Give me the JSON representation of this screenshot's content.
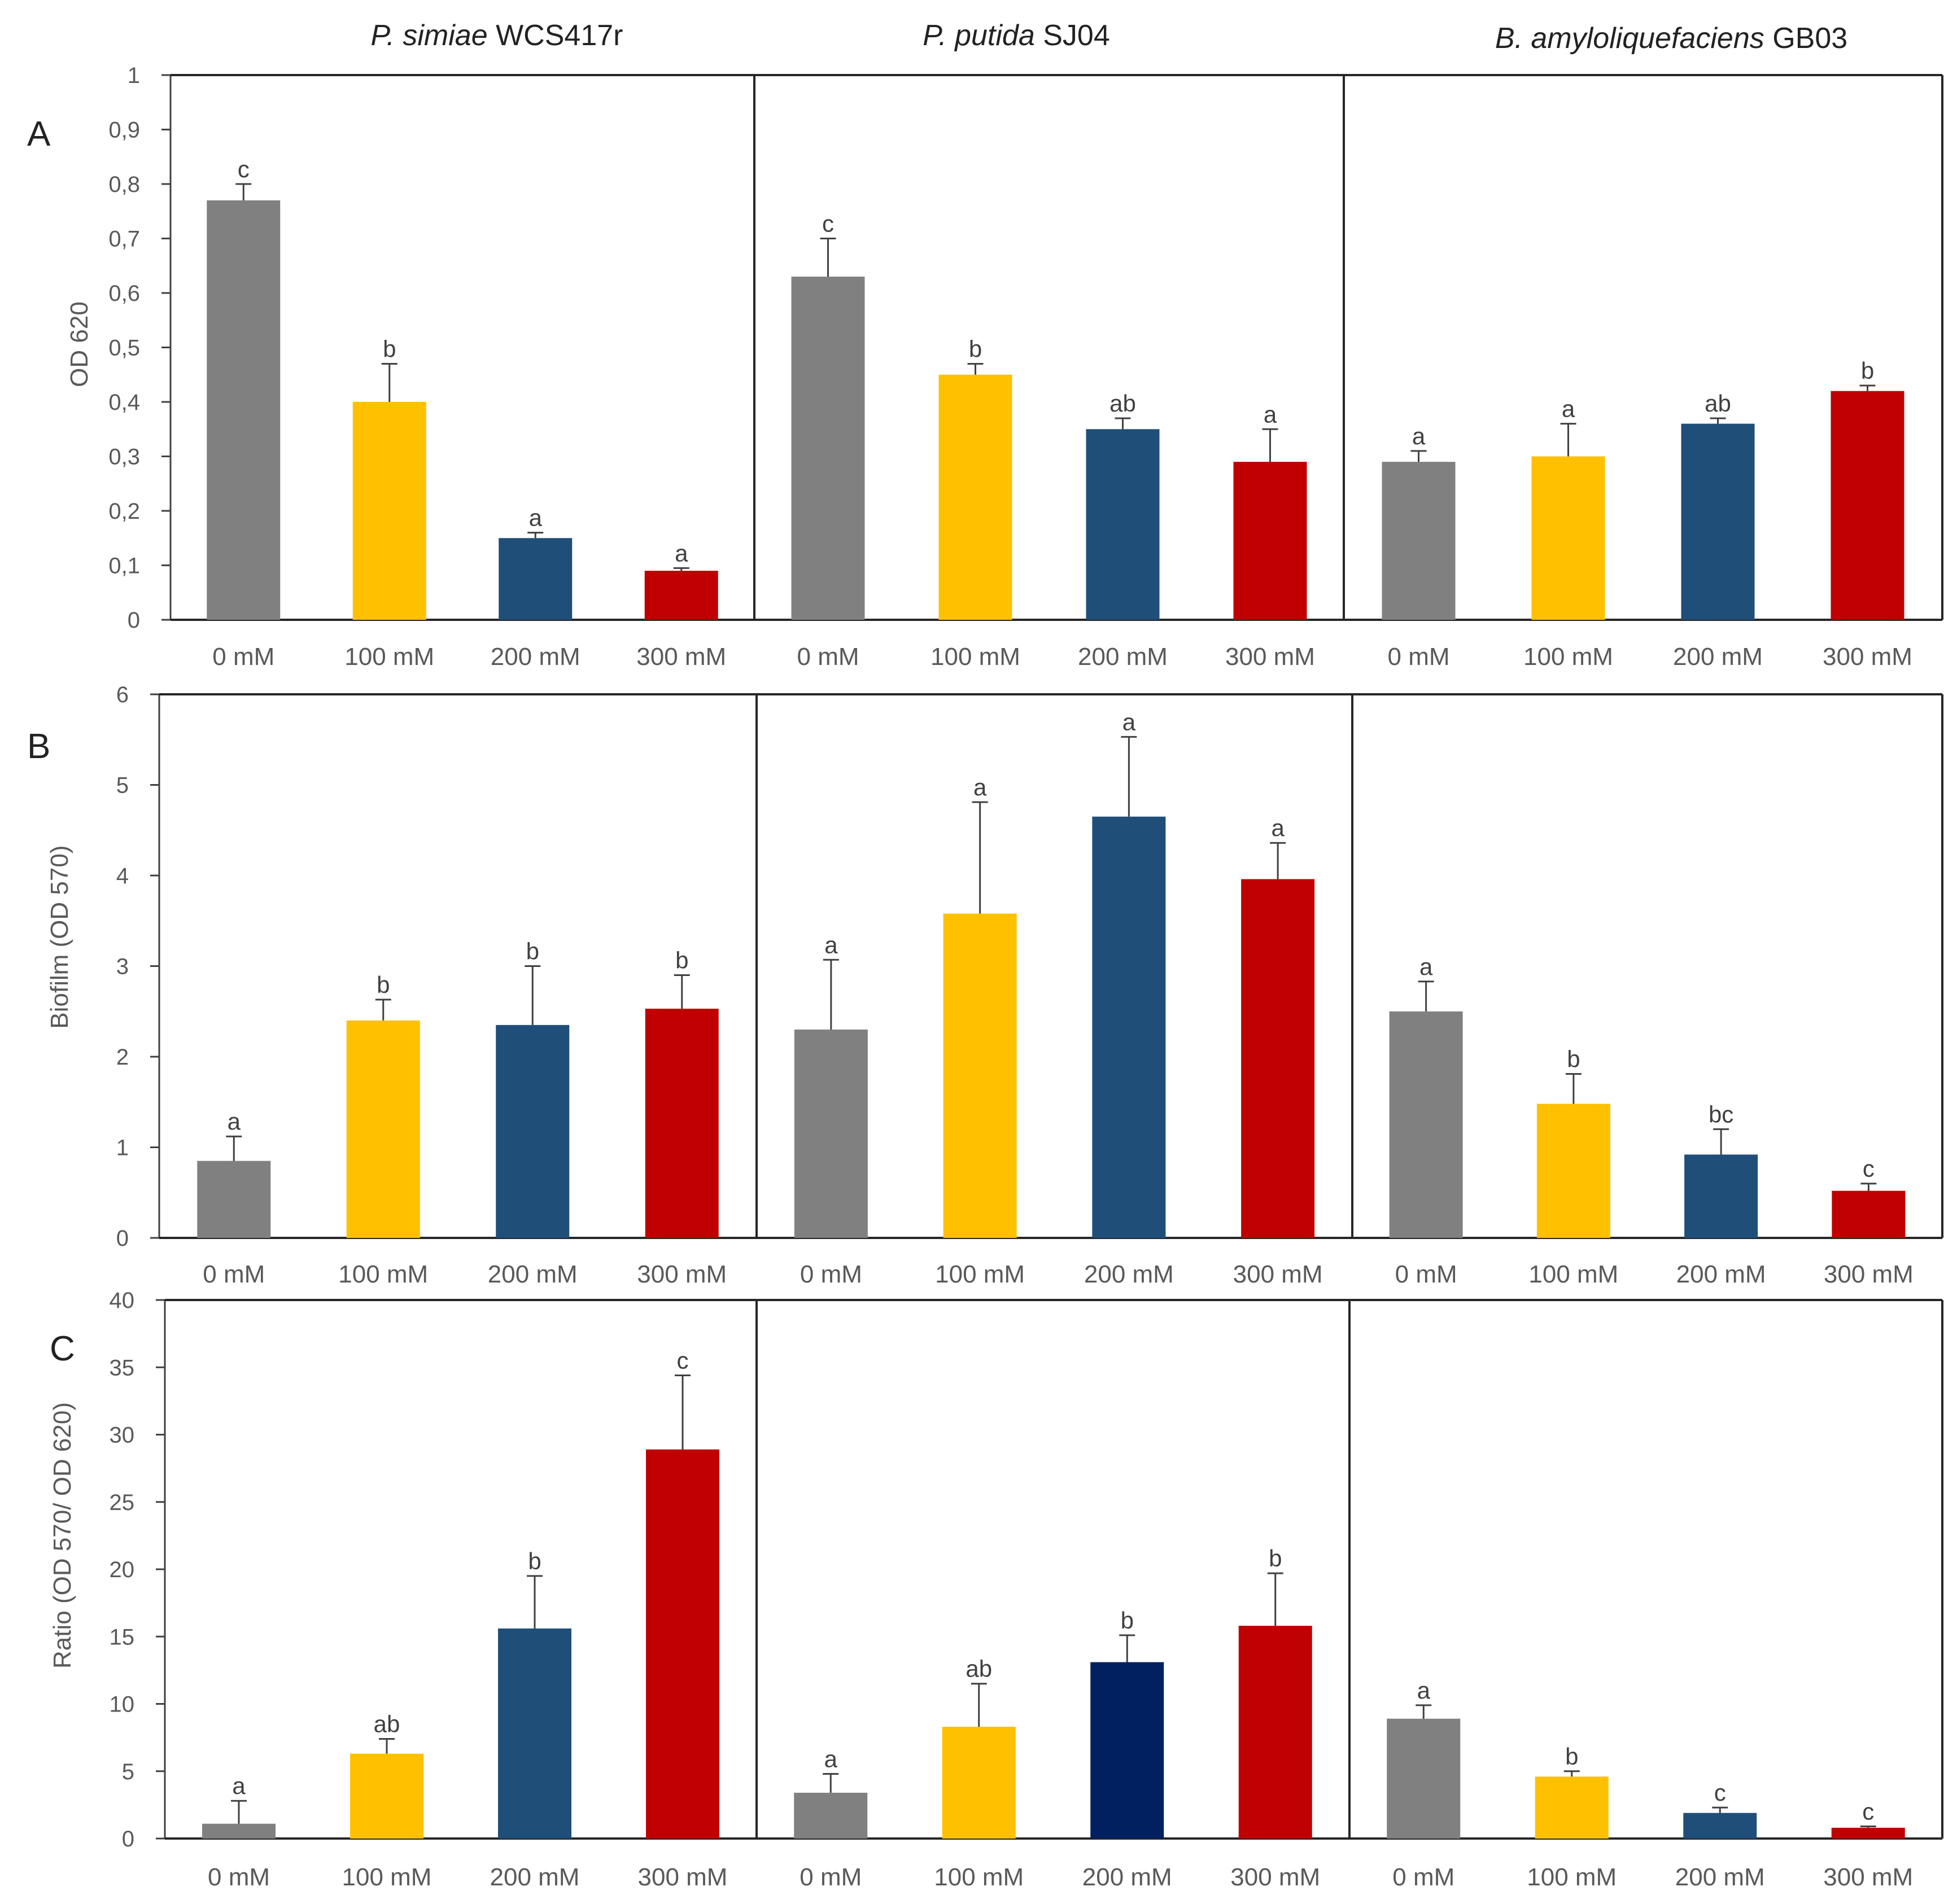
{
  "headers": [
    {
      "italic": "P. simiae",
      "plain": " WCS417r"
    },
    {
      "italic": "P. putida",
      "plain": " SJ04"
    },
    {
      "italic": "B. amyloliquefaciens",
      "plain": " GB03"
    }
  ],
  "colors": {
    "0 mM": "#808080",
    "100 mM": "#ffc000",
    "200 mM": "#1f4e79",
    "300 mM": "#c00000",
    "200 mM alt": "#002060"
  },
  "chart_data": [
    {
      "type": "bar",
      "panel": "A",
      "ylabel": "OD 620",
      "ylim": [
        0,
        1
      ],
      "ytick_labels": [
        "0",
        "0,1",
        "0,2",
        "0,3",
        "0,4",
        "0,5",
        "0,6",
        "0,7",
        "0,8",
        "0,9",
        "1"
      ],
      "categories": [
        "0 mM",
        "100 mM",
        "200 mM",
        "300 mM"
      ],
      "groups": [
        {
          "strain": "P. simiae WCS417r",
          "values": [
            0.77,
            0.4,
            0.15,
            0.09
          ],
          "errors": [
            0.03,
            0.07,
            0.01,
            0.005
          ],
          "letters": [
            "c",
            "b",
            "a",
            "a"
          ]
        },
        {
          "strain": "P. putida SJ04",
          "values": [
            0.63,
            0.45,
            0.35,
            0.29
          ],
          "errors": [
            0.07,
            0.02,
            0.02,
            0.06
          ],
          "letters": [
            "c",
            "b",
            "ab",
            "a"
          ]
        },
        {
          "strain": "B. amyloliquefaciens GB03",
          "values": [
            0.29,
            0.3,
            0.36,
            0.42
          ],
          "errors": [
            0.02,
            0.06,
            0.01,
            0.01
          ],
          "letters": [
            "a",
            "a",
            "ab",
            "b"
          ]
        }
      ]
    },
    {
      "type": "bar",
      "panel": "B",
      "ylabel": "Biofilm (OD 570)",
      "ylim": [
        0,
        6
      ],
      "ytick_labels": [
        "0",
        "1",
        "2",
        "3",
        "4",
        "5",
        "6"
      ],
      "categories": [
        "0 mM",
        "100 mM",
        "200 mM",
        "300 mM"
      ],
      "groups": [
        {
          "strain": "P. simiae WCS417r",
          "values": [
            0.85,
            2.4,
            2.35,
            2.53
          ],
          "errors": [
            0.27,
            0.23,
            0.65,
            0.37
          ],
          "letters": [
            "a",
            "b",
            "b",
            "b"
          ]
        },
        {
          "strain": "P. putida SJ04",
          "values": [
            2.3,
            3.58,
            4.65,
            3.96
          ],
          "errors": [
            0.77,
            1.23,
            0.88,
            0.4
          ],
          "letters": [
            "a",
            "a",
            "a",
            "a"
          ]
        },
        {
          "strain": "B. amyloliquefaciens GB03",
          "values": [
            2.5,
            1.48,
            0.92,
            0.52
          ],
          "errors": [
            0.33,
            0.33,
            0.28,
            0.08
          ],
          "letters": [
            "a",
            "b",
            "bc",
            "c"
          ]
        }
      ]
    },
    {
      "type": "bar",
      "panel": "C",
      "ylabel": "Ratio (OD 570/ OD 620)",
      "ylim": [
        0,
        40
      ],
      "ytick_labels": [
        "0",
        "5",
        "10",
        "15",
        "20",
        "25",
        "30",
        "35",
        "40"
      ],
      "categories": [
        "0 mM",
        "100 mM",
        "200 mM",
        "300 mM"
      ],
      "groups": [
        {
          "strain": "P. simiae WCS417r",
          "values": [
            1.1,
            6.3,
            15.6,
            28.9
          ],
          "errors": [
            1.7,
            1.1,
            3.9,
            5.5
          ],
          "letters": [
            "a",
            "ab",
            "b",
            "c"
          ]
        },
        {
          "strain": "P. putida SJ04",
          "values": [
            3.4,
            8.3,
            13.1,
            15.8
          ],
          "errors": [
            1.4,
            3.2,
            2.0,
            3.9
          ],
          "letters": [
            "a",
            "ab",
            "b",
            "b"
          ]
        },
        {
          "strain": "B. amyloliquefaciens GB03",
          "values": [
            8.9,
            4.6,
            1.9,
            0.8
          ],
          "errors": [
            1.0,
            0.4,
            0.4,
            0.1
          ],
          "letters": [
            "a",
            "b",
            "c",
            "c"
          ]
        }
      ]
    }
  ]
}
